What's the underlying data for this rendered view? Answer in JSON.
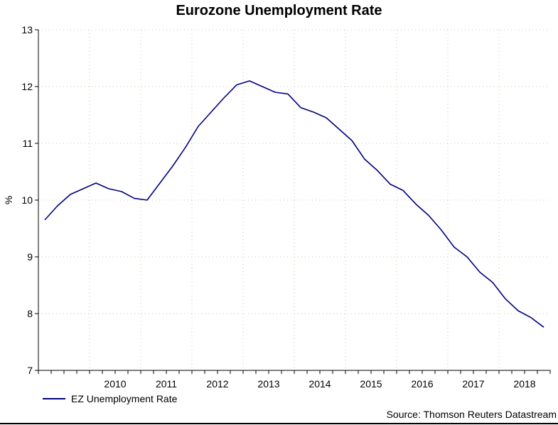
{
  "chart_data": {
    "type": "line",
    "title": "Eurozone Unemployment Rate",
    "ylabel": "%",
    "xlabel": "",
    "ylim": [
      7,
      13
    ],
    "yticks": [
      7,
      8,
      9,
      10,
      11,
      12,
      13
    ],
    "x_tick_labels": [
      "2010",
      "2011",
      "2012",
      "2013",
      "2014",
      "2015",
      "2016",
      "2017",
      "2018"
    ],
    "grid": true,
    "legend_position": "bottom-left",
    "series": [
      {
        "name": "EZ Unemployment Rate",
        "color": "#000080",
        "x": [
          "2009-Q1",
          "2009-Q2",
          "2009-Q3",
          "2009-Q4",
          "2010-Q1",
          "2010-Q2",
          "2010-Q3",
          "2010-Q4",
          "2011-Q1",
          "2011-Q2",
          "2011-Q3",
          "2011-Q4",
          "2012-Q1",
          "2012-Q2",
          "2012-Q3",
          "2012-Q4",
          "2013-Q1",
          "2013-Q2",
          "2013-Q3",
          "2013-Q4",
          "2014-Q1",
          "2014-Q2",
          "2014-Q3",
          "2014-Q4",
          "2015-Q1",
          "2015-Q2",
          "2015-Q3",
          "2015-Q4",
          "2016-Q1",
          "2016-Q2",
          "2016-Q3",
          "2016-Q4",
          "2017-Q1",
          "2017-Q2",
          "2017-Q3",
          "2017-Q4",
          "2018-Q1",
          "2018-Q2",
          "2018-Q3",
          "2018-Q4"
        ],
        "values": [
          9.65,
          9.9,
          10.1,
          10.2,
          10.3,
          10.2,
          10.15,
          10.03,
          10.0,
          10.3,
          10.6,
          10.93,
          11.3,
          11.55,
          11.8,
          12.03,
          12.1,
          12.0,
          11.9,
          11.87,
          11.63,
          11.55,
          11.45,
          11.25,
          11.05,
          10.72,
          10.52,
          10.28,
          10.17,
          9.93,
          9.73,
          9.47,
          9.17,
          9.0,
          8.73,
          8.55,
          8.26,
          8.05,
          7.93,
          7.76
        ]
      }
    ],
    "source": "Source: Thomson Reuters Datastream"
  }
}
